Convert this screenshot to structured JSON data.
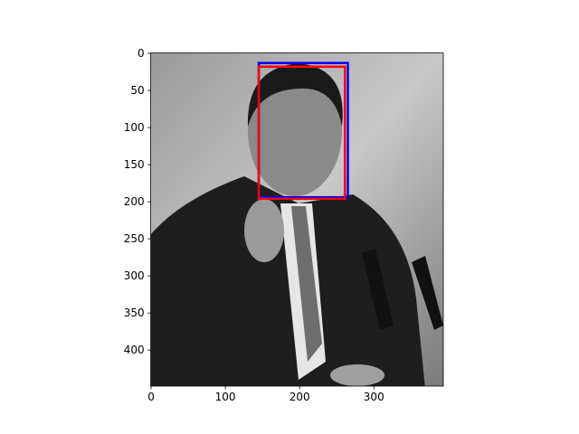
{
  "chart_data": {
    "type": "image",
    "xlim": [
      -0.5,
      393.5
    ],
    "ylim": [
      448.5,
      -0.5
    ],
    "xticks": [
      0,
      100,
      200,
      300
    ],
    "yticks": [
      0,
      50,
      100,
      150,
      200,
      250,
      300,
      350,
      400
    ],
    "boxes": [
      {
        "color": "#0000ff",
        "x0": 145,
        "y0": 13,
        "x1": 265,
        "y1": 194
      },
      {
        "color": "#ff0000",
        "x0": 145,
        "y0": 18,
        "x1": 261,
        "y1": 196
      }
    ]
  }
}
